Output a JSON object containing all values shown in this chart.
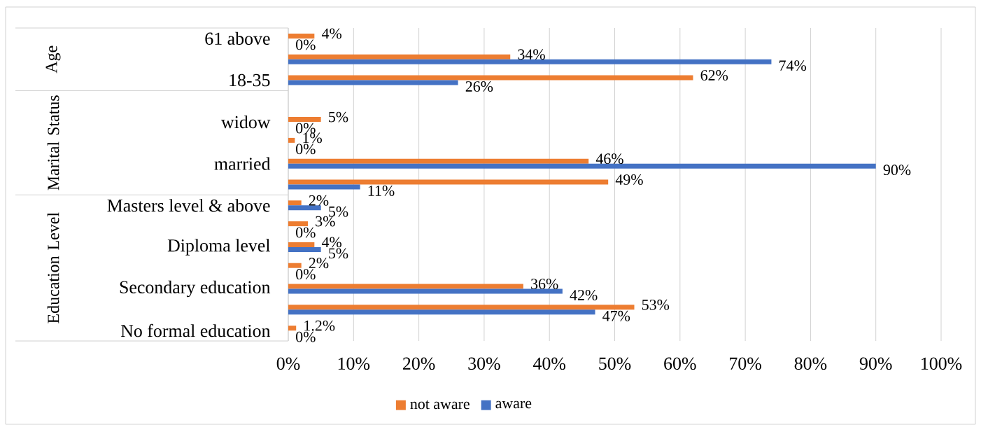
{
  "chart_data": {
    "type": "bar",
    "orientation": "horizontal",
    "categories": [
      "61 above",
      null,
      "18-35",
      null,
      "widow",
      null,
      "married",
      null,
      "Masters level & above",
      null,
      "Diploma level",
      null,
      "Secondary education",
      null,
      "No formal education"
    ],
    "series": [
      {
        "name": "not aware",
        "color": "#ed7d31",
        "values": [
          4,
          34,
          62,
          null,
          5,
          1,
          46,
          49,
          2,
          3,
          4,
          2,
          36,
          53,
          1.2
        ],
        "value_labels": [
          "4%",
          "34%",
          "62%",
          null,
          "5%",
          "1%",
          "46%",
          "49%",
          "2%",
          "3%",
          "4%",
          "2%",
          "36%",
          "53%",
          "1.2%"
        ]
      },
      {
        "name": "aware",
        "color": "#4472c4",
        "values": [
          0,
          74,
          26,
          null,
          0,
          0,
          90,
          11,
          5,
          0,
          5,
          0,
          42,
          47,
          0
        ],
        "value_labels": [
          "0%",
          "74%",
          "26%",
          null,
          "0%",
          "0%",
          "90%",
          "11%",
          "5%",
          "0%",
          "5%",
          "0%",
          "42%",
          "47%",
          "0%"
        ]
      }
    ],
    "xlim": [
      0,
      100
    ],
    "xticks": [
      {
        "value": 0,
        "label": "0%"
      },
      {
        "value": 10,
        "label": "10%"
      },
      {
        "value": 20,
        "label": "20%"
      },
      {
        "value": 30,
        "label": "30%"
      },
      {
        "value": 40,
        "label": "40%"
      },
      {
        "value": 50,
        "label": "50%"
      },
      {
        "value": 60,
        "label": "60%"
      },
      {
        "value": 70,
        "label": "70%"
      },
      {
        "value": 80,
        "label": "80%"
      },
      {
        "value": 90,
        "label": "90%"
      },
      {
        "value": 100,
        "label": "100%"
      }
    ],
    "grid": "x",
    "legend": "bottom",
    "annotations": [
      "Age",
      "Marital Status",
      "Education Level"
    ]
  }
}
